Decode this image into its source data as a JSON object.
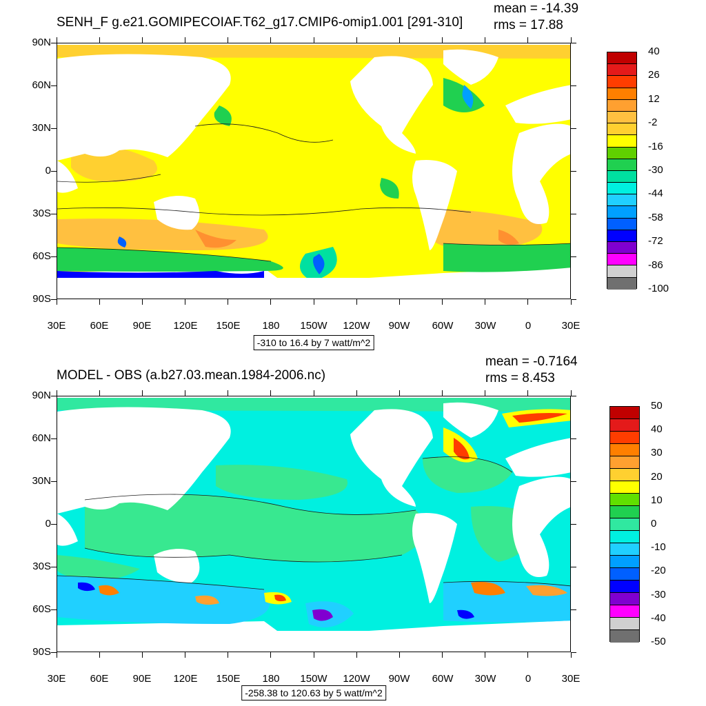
{
  "colors": {
    "land": "#ffffff",
    "contour": "#1a1a1a"
  },
  "axes": {
    "lat_labels": [
      "90N",
      "60N",
      "30N",
      "0",
      "30S",
      "60S",
      "90S"
    ],
    "lon_labels": [
      "30E",
      "60E",
      "90E",
      "120E",
      "150E",
      "180",
      "150W",
      "120W",
      "90W",
      "60W",
      "30W",
      "0",
      "30E"
    ]
  },
  "panels": [
    {
      "title": "SENH_F g.e21.GOMIPECOIAF.T62_g17.CMIP6-omip1.001 [291-310]",
      "mean": "mean = -14.39",
      "rms": "rms = 17.88",
      "range_label": "-310 to 16.4 by 7 watt/m^2",
      "background_color": "#ffff00",
      "legend": {
        "labels": [
          "40",
          "26",
          "12",
          "-2",
          "-16",
          "-30",
          "-44",
          "-58",
          "-72",
          "-86",
          "-100"
        ],
        "colors": [
          "#c00000",
          "#e41a1a",
          "#ff3d00",
          "#ff7f00",
          "#ffa030",
          "#ffc040",
          "#ffd030",
          "#ffff00",
          "#60d000",
          "#20d050",
          "#00e0a0",
          "#00f0e0",
          "#20d0ff",
          "#00a0ff",
          "#0060ff",
          "#0000ff",
          "#8000d0",
          "#ff00ff",
          "#d0d0d0",
          "#707070"
        ]
      }
    },
    {
      "title": "MODEL - OBS (a.b27.03.mean.1984-2006.nc)",
      "mean": "mean = -0.7164",
      "rms": "rms = 8.453",
      "range_label": "-258.38 to 120.63 by 5 watt/m^2",
      "background_color": "#38e890",
      "legend": {
        "labels": [
          "50",
          "40",
          "30",
          "20",
          "10",
          "0",
          "-10",
          "-20",
          "-30",
          "-40",
          "-50"
        ],
        "colors": [
          "#c00000",
          "#e41a1a",
          "#ff3d00",
          "#ff7f00",
          "#ffa030",
          "#ffd030",
          "#ffff00",
          "#60e000",
          "#20d050",
          "#30e8a0",
          "#00f0e0",
          "#20d0ff",
          "#00a0ff",
          "#0060ff",
          "#0000ff",
          "#8000d0",
          "#ff00ff",
          "#d0d0d0",
          "#707070"
        ]
      }
    }
  ]
}
